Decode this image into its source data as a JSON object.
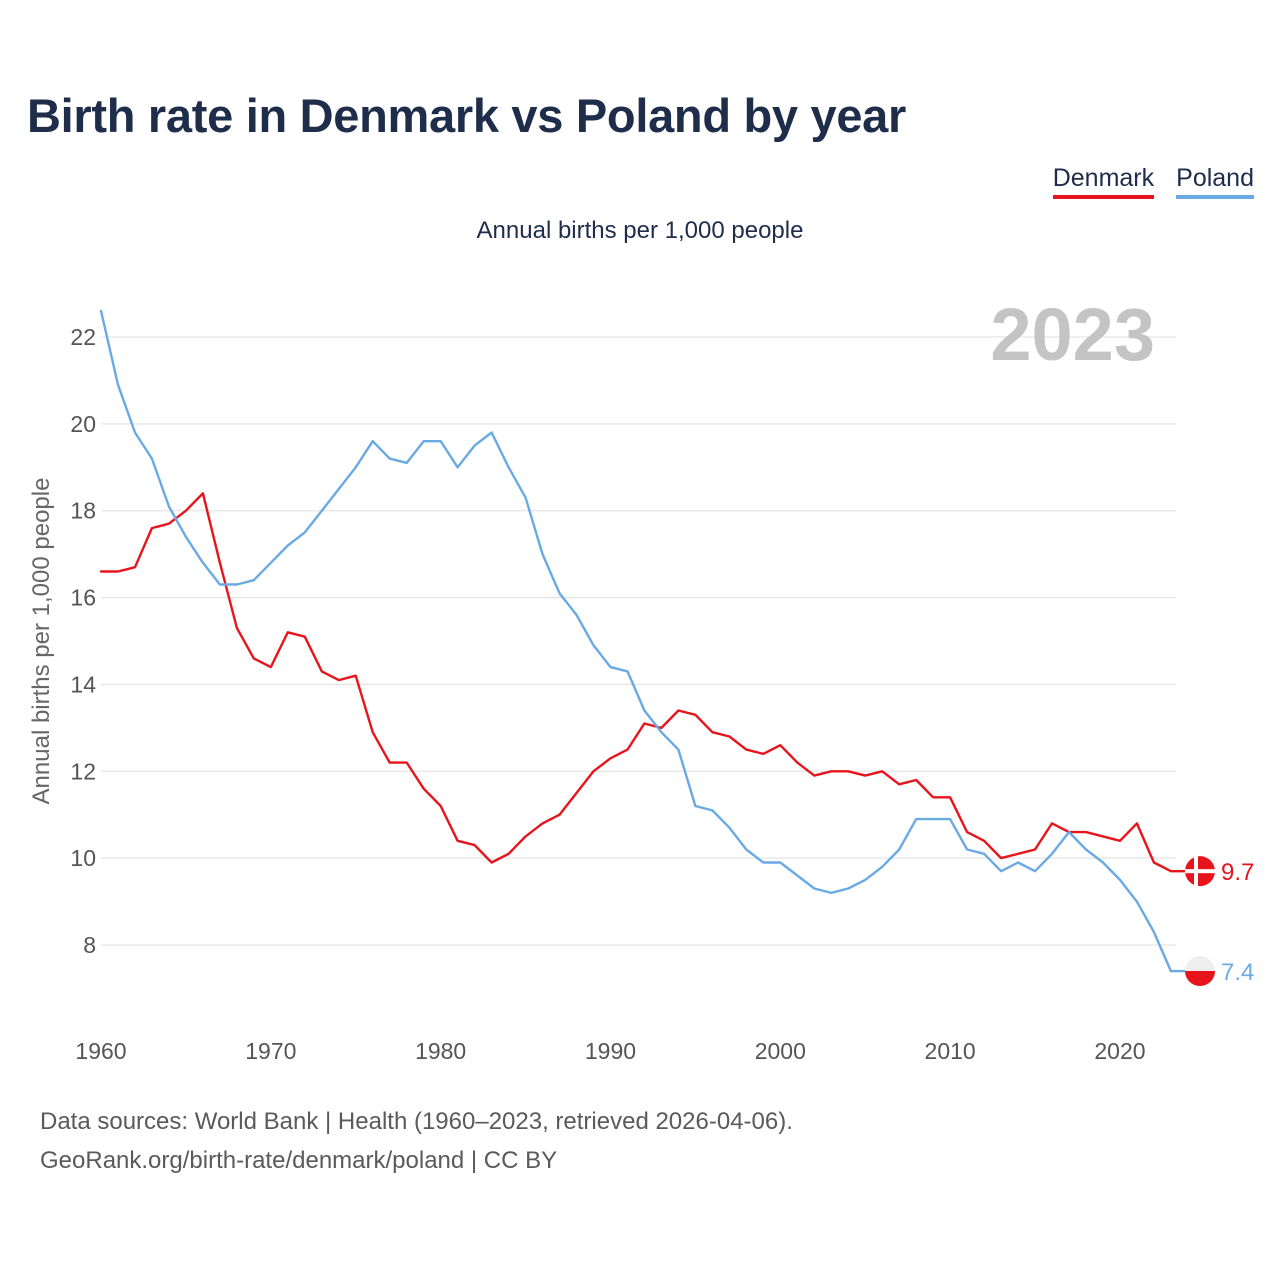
{
  "title": "Birth rate in Denmark vs Poland by year",
  "legend": [
    {
      "label": "Denmark",
      "color": "#e8141c"
    },
    {
      "label": "Poland",
      "color": "#6aaae4"
    }
  ],
  "subtitle": "Annual births per 1,000 people",
  "year_label": "2023",
  "source_line1": "Data sources: World Bank | Health (1960–2023, retrieved 2026-04-06).",
  "source_line2": "GeoRank.org/birth-rate/denmark/poland | CC BY",
  "chart_data": {
    "type": "line",
    "title": "Birth rate in Denmark vs Poland by year",
    "xlabel": "",
    "ylabel": "Annual births per 1,000 people",
    "xlim": [
      1960,
      2023
    ],
    "ylim": [
      7,
      22.6
    ],
    "x_ticks": [
      1960,
      1970,
      1980,
      1990,
      2000,
      2010,
      2020
    ],
    "y_ticks": [
      8,
      10,
      12,
      14,
      16,
      18,
      20,
      22
    ],
    "grid": true,
    "x": [
      1960,
      1961,
      1962,
      1963,
      1964,
      1965,
      1966,
      1967,
      1968,
      1969,
      1970,
      1971,
      1972,
      1973,
      1974,
      1975,
      1976,
      1977,
      1978,
      1979,
      1980,
      1981,
      1982,
      1983,
      1984,
      1985,
      1986,
      1987,
      1988,
      1989,
      1990,
      1991,
      1992,
      1993,
      1994,
      1995,
      1996,
      1997,
      1998,
      1999,
      2000,
      2001,
      2002,
      2003,
      2004,
      2005,
      2006,
      2007,
      2008,
      2009,
      2010,
      2011,
      2012,
      2013,
      2014,
      2015,
      2016,
      2017,
      2018,
      2019,
      2020,
      2021,
      2022,
      2023
    ],
    "series": [
      {
        "name": "Denmark",
        "color": "#e8141c",
        "end_label": "9.7",
        "values": [
          16.6,
          16.6,
          16.7,
          17.6,
          17.7,
          18.0,
          18.4,
          16.8,
          15.3,
          14.6,
          14.4,
          15.2,
          15.1,
          14.3,
          14.1,
          14.2,
          12.9,
          12.2,
          12.2,
          11.6,
          11.2,
          10.4,
          10.3,
          9.9,
          10.1,
          10.5,
          10.8,
          11.0,
          11.5,
          12.0,
          12.3,
          12.5,
          13.1,
          13.0,
          13.4,
          13.3,
          12.9,
          12.8,
          12.5,
          12.4,
          12.6,
          12.2,
          11.9,
          12.0,
          12.0,
          11.9,
          12.0,
          11.7,
          11.8,
          11.4,
          11.4,
          10.6,
          10.4,
          10.0,
          10.1,
          10.2,
          10.8,
          10.6,
          10.6,
          10.5,
          10.4,
          10.8,
          9.9,
          9.7
        ]
      },
      {
        "name": "Poland",
        "color": "#6aaae4",
        "end_label": "7.4",
        "values": [
          22.6,
          20.9,
          19.8,
          19.2,
          18.1,
          17.4,
          16.8,
          16.3,
          16.3,
          16.4,
          16.8,
          17.2,
          17.5,
          18.0,
          18.5,
          19.0,
          19.6,
          19.2,
          19.1,
          19.6,
          19.6,
          19.0,
          19.5,
          19.8,
          19.0,
          18.3,
          17.0,
          16.1,
          15.6,
          14.9,
          14.4,
          14.3,
          13.4,
          12.9,
          12.5,
          11.2,
          11.1,
          10.7,
          10.2,
          9.9,
          9.9,
          9.6,
          9.3,
          9.2,
          9.3,
          9.5,
          9.8,
          10.2,
          10.9,
          10.9,
          10.9,
          10.2,
          10.1,
          9.7,
          9.9,
          9.7,
          10.1,
          10.6,
          10.2,
          9.9,
          9.5,
          9.0,
          8.3,
          7.4
        ]
      }
    ]
  }
}
